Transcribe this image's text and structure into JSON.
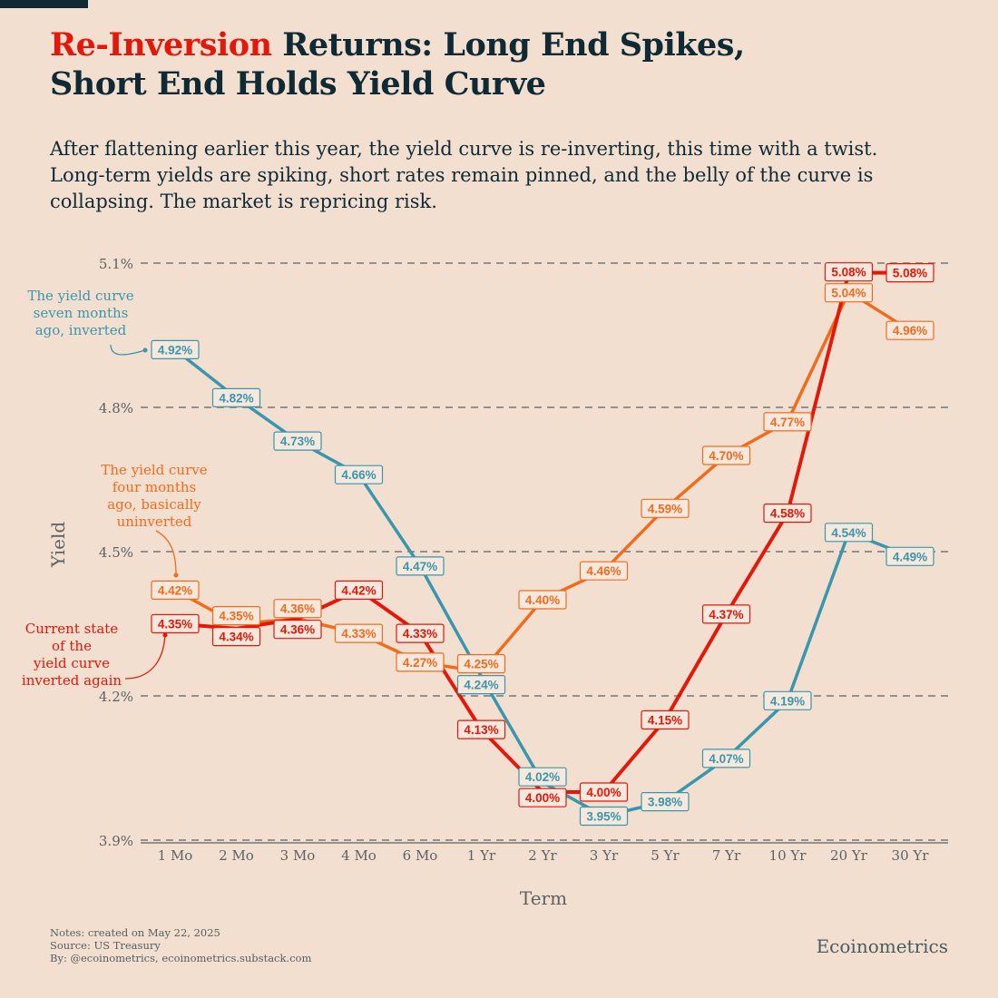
{
  "title": {
    "highlight": "Re-Inversion",
    "rest_line1": " Returns: Long End Spikes,",
    "line2": "Short End Holds Yield Curve"
  },
  "subtitle": "After flattening earlier this year, the yield curve is re-inverting, this time with a twist. Long-term yields are spiking, short rates remain pinned, and the belly of the curve is collapsing. The market is repricing risk.",
  "notes": [
    "Notes: created on May 22, 2025",
    "Source: US Treasury",
    "By: @ecoinometrics, ecoinometrics.substack.com"
  ],
  "brand": "Ecoinometrics",
  "colors": {
    "seven_months": "#3a96ad",
    "four_months": "#f26b1d",
    "current": "#e3170a",
    "background": "#f2dfcf"
  },
  "chart_data": {
    "type": "line",
    "xlabel": "Term",
    "ylabel": "Yield",
    "ylim": [
      3.9,
      5.1
    ],
    "yticks": [
      3.9,
      4.2,
      4.5,
      4.8,
      5.1
    ],
    "ytick_labels": [
      "3.9%",
      "4.2%",
      "4.5%",
      "4.8%",
      "5.1%"
    ],
    "grid": "horizontal dashed",
    "categories": [
      "1 Mo",
      "2 Mo",
      "3 Mo",
      "4 Mo",
      "6 Mo",
      "1 Yr",
      "2 Yr",
      "3 Yr",
      "5 Yr",
      "7 Yr",
      "10 Yr",
      "20 Yr",
      "30 Yr"
    ],
    "series": [
      {
        "name": "The yield curve seven months ago, inverted",
        "key": "seven_months",
        "values": [
          4.92,
          4.82,
          4.73,
          4.66,
          4.47,
          4.24,
          4.02,
          3.95,
          3.98,
          4.07,
          4.19,
          4.54,
          4.49
        ]
      },
      {
        "name": "The yield curve four months ago, basically uninverted",
        "key": "four_months",
        "values": [
          4.42,
          4.35,
          4.36,
          4.33,
          4.27,
          4.25,
          4.4,
          4.46,
          4.59,
          4.7,
          4.77,
          5.04,
          4.96
        ]
      },
      {
        "name": "Current state of the yield curve inverted again",
        "key": "current",
        "values": [
          4.35,
          4.34,
          4.36,
          4.42,
          4.33,
          4.13,
          4.0,
          4.0,
          4.15,
          4.37,
          4.58,
          5.08,
          5.08
        ]
      }
    ],
    "annotations": [
      {
        "series": "seven_months",
        "lines": [
          "The yield curve",
          "seven months",
          "ago, inverted"
        ]
      },
      {
        "series": "four_months",
        "lines": [
          "The yield curve",
          "four months",
          "ago, basically",
          "uninverted"
        ]
      },
      {
        "series": "current",
        "lines": [
          "Current state",
          "of the",
          "yield curve",
          "inverted again"
        ]
      }
    ]
  }
}
